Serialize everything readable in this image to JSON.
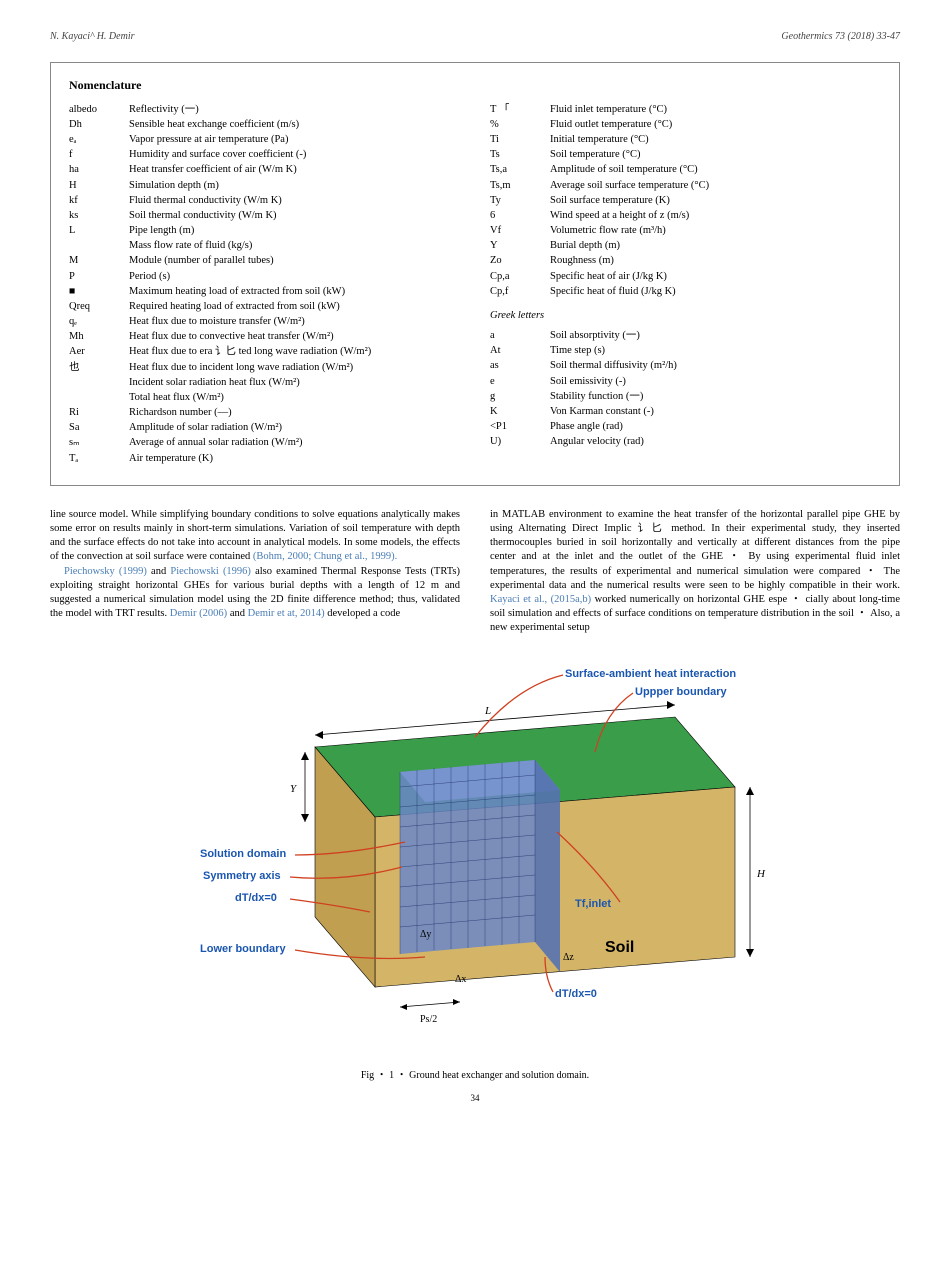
{
  "header": {
    "authors": "N. Kayaci^ H. Demir",
    "journal": "Geothermics 73 (2018) 33-47"
  },
  "nomenclature": {
    "title": "Nomenclature",
    "left": [
      {
        "sym": "albedo",
        "def": "Reflectivity (一)"
      },
      {
        "sym": "Dh",
        "def": "Sensible heat exchange coefficient (m/s)"
      },
      {
        "sym": "eₐ",
        "def": "Vapor pressure at air temperature (Pa)"
      },
      {
        "sym": "f",
        "def": "Humidity and surface cover coefficient (-)"
      },
      {
        "sym": "ha",
        "def": "Heat transfer coefficient of air (W/m K)"
      },
      {
        "sym": "H",
        "def": "Simulation depth (m)"
      },
      {
        "sym": "kf",
        "def": "Fluid thermal conductivity (W/m K)"
      },
      {
        "sym": "ks",
        "def": "Soil thermal conductivity (W/m K)"
      },
      {
        "sym": "L",
        "def": "Pipe length (m)"
      },
      {
        "sym": "",
        "def": "Mass flow rate of fluid (kg/s)"
      },
      {
        "sym": "M",
        "def": "Module (number of parallel tubes)"
      },
      {
        "sym": "P",
        "def": "Period (s)"
      },
      {
        "sym": "■",
        "def": "Maximum heating load of extracted from soil (kW)"
      },
      {
        "sym": "Qreq",
        "def": "Required heating load of extracted from soil (kW)"
      },
      {
        "sym": "qₑ",
        "def": "Heat flux due to moisture transfer (W/m²)"
      },
      {
        "sym": "Mh",
        "def": "Heat flux due to convective heat transfer (W/m²)"
      },
      {
        "sym": "Aer",
        "def": "Heat flux due to era 讠匕 ted long wave radiation (W/m²)"
      },
      {
        "sym": "也",
        "def": "Heat flux due to incident long wave radiation (W/m²)"
      },
      {
        "sym": "",
        "def": "Incident solar radiation heat flux (W/m²)"
      },
      {
        "sym": "",
        "def": "Total heat flux (W/m²)"
      },
      {
        "sym": "Ri",
        "def": "Richardson number (—)"
      },
      {
        "sym": "Sa",
        "def": "Amplitude of solar radiation (W/m²)"
      },
      {
        "sym": "sₘ",
        "def": "Average of annual solar radiation (W/m²)"
      },
      {
        "sym": "Tₐ",
        "def": "Air temperature (K)"
      }
    ],
    "right_top": [
      {
        "sym": "T 「",
        "def": "Fluid inlet temperature (°C)"
      },
      {
        "sym": "%",
        "def": "Fluid outlet temperature (°C)"
      },
      {
        "sym": "Ti",
        "def": "Initial temperature (°C)"
      },
      {
        "sym": "Ts",
        "def": "Soil temperature (°C)"
      },
      {
        "sym": "Ts,a",
        "def": "Amplitude of soil temperature (°C)"
      },
      {
        "sym": "Ts,m",
        "def": "Average soil surface temperature (°C)"
      },
      {
        "sym": "Ty",
        "def": "Soil surface temperature (K)"
      },
      {
        "sym": "6",
        "def": "Wind speed at a height of z (m/s)"
      },
      {
        "sym": "Vf",
        "def": "Volumetric flow rate (m³/h)"
      },
      {
        "sym": "Y",
        "def": "Burial depth (m)"
      },
      {
        "sym": "Zo",
        "def": "Roughness (m)"
      },
      {
        "sym": "Cp,a",
        "def": "Specific heat of air (J/kg K)"
      },
      {
        "sym": "Cp,f",
        "def": "Specific heat of fluid (J/kg K)"
      }
    ],
    "greek_title": "Greek letters",
    "right_greek": [
      {
        "sym": "a",
        "def": "Soil absorptivity (一)"
      },
      {
        "sym": "At",
        "def": "Time step (s)"
      },
      {
        "sym": "as",
        "def": "Soil thermal diffusivity (m²/h)"
      },
      {
        "sym": "e",
        "def": "Soil emissivity (-)"
      },
      {
        "sym": "g",
        "def": "Stability function (一)"
      },
      {
        "sym": "K",
        "def": "Von Karman constant (-)"
      },
      {
        "sym": "<P1",
        "def": "Phase angle (rad)"
      },
      {
        "sym": "U)",
        "def": "Angular velocity (rad)"
      }
    ]
  },
  "body": {
    "left": [
      {
        "text": "line source model. While simplifying boundary conditions to solve equations analytically makes some error on results mainly in short-term simulations. Variation of soil temperature with depth and the surface effects do not take into account in analytical models. In some models, the effects of the convection at soil surface were contained ",
        "ref": "(Bohm, 2000; Chung et al., 1999).",
        "indent": false
      },
      {
        "pre": "",
        "ref1": "Piechowsky (1999)",
        "mid": " and ",
        "ref2": "Piechowski (1996)",
        "post": " also examined Thermal Response Tests (TRTs) exploiting straight horizontal GHEs for various burial depths with a length of 12 m and suggested a numerical simulation model using the 2D finite difference method; thus, validated the model with TRT results. ",
        "ref3": "Demir (2006)",
        "mid2": " and ",
        "ref4": "Demir et at, 2014)",
        "post2": " developed a code",
        "indent": true
      }
    ],
    "right": [
      {
        "text": "in MATLAB environment to examine the heat transfer of the horizontal parallel pipe GHE by using Alternating Direct Implic 讠匕 method. In their experimental study, they inserted thermocouples buried in soil horizontally and vertically at different distances from the pipe center and at the inlet and the outlet of the GHE ・ By using experimental fluid inlet temperatures, the results of experimental and numerical simulation were compared ・ The experimental data and the numerical results were seen to be highly compatible in their work. ",
        "ref": "Kayaci et al., (2015a,b)",
        "post": " worked numerically on horizontal GHE espe ・ cially about long-time soil simulation and effects of surface conditions on temperature distribution in the soil ・ Also, a new experimental setup"
      }
    ]
  },
  "figure": {
    "caption": "Fig ・ 1 ・ Ground heat exchanger and solution domain.",
    "labels": {
      "surface": "Surface-ambient heat interaction",
      "upper": "Uppper boundary",
      "solution": "Solution domain",
      "symmetry": "Symmetry axis",
      "dtdx": "dT/dx=0",
      "lower": "Lower boundary",
      "tfinlet": "Tf,inlet",
      "soil": "Soil",
      "dtdx2": "dT/dx=0",
      "L": "L",
      "Y": "Y",
      "H": "H",
      "dy": "Δy",
      "dx": "Δx",
      "dz": "Δz",
      "ps2": "Ps/2"
    },
    "colors": {
      "top_surface": "#3a9d4a",
      "soil_side": "#d4b568",
      "soil_front": "#e8d090",
      "mesh": "#3b5fa8",
      "label": "#1a56b0",
      "leader": "#d04020"
    }
  },
  "page": "34"
}
